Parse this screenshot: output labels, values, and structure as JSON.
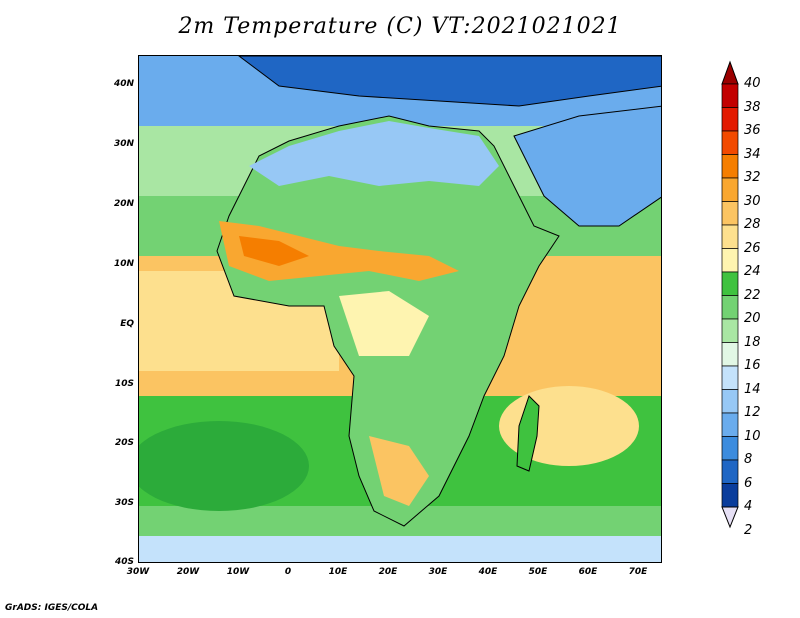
{
  "title": "2m Temperature (C) VT:2021021021",
  "footer": "GrADS: IGES/COLA",
  "y_labels": [
    "40N",
    "30N",
    "20N",
    "10N",
    "EQ",
    "10S",
    "20S",
    "30S",
    "40S"
  ],
  "x_labels": [
    "30W",
    "20W",
    "10W",
    "0",
    "10E",
    "20E",
    "30E",
    "40E",
    "50E",
    "60E",
    "70E"
  ],
  "colorbar": {
    "labels": [
      "40",
      "38",
      "36",
      "34",
      "32",
      "30",
      "28",
      "26",
      "24",
      "22",
      "20",
      "18",
      "16",
      "14",
      "12",
      "10",
      "8",
      "6",
      "4",
      "2"
    ],
    "colors": [
      "#9b0000",
      "#c20000",
      "#e31a00",
      "#f24a00",
      "#f57e00",
      "#f9a730",
      "#fbc462",
      "#fde08e",
      "#fef4b0",
      "#3fc23f",
      "#73d273",
      "#a9e6a3",
      "#e2f7e5",
      "#c4e2fb",
      "#97c8f5",
      "#6aaced",
      "#3c8cde",
      "#1f66c4",
      "#0a3d9c",
      "#061e6b"
    ]
  }
}
